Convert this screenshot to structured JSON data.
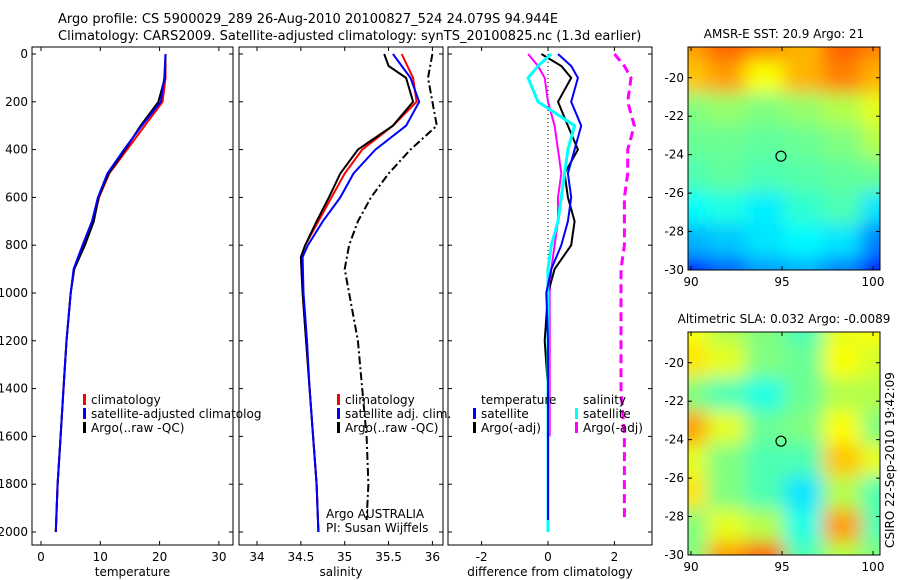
{
  "title_line1": "Argo profile: CS 5900029_289 26-Aug-2010 20100827_524 24.079S 94.944E",
  "title_line2": "Climatology: CARS2009. Satellite-adjusted climatology: synTS_20100825.nc (1.3d earlier)",
  "colors": {
    "climatology": "#ff0000",
    "satellite": "#0000ff",
    "argo": "#000000",
    "sal_satellite": "#00ffff",
    "sal_argo": "#ff00ff"
  },
  "chart_data": [
    {
      "type": "line",
      "title": "",
      "xlabel": "temperature",
      "ylabel": "",
      "xlim": [
        -1,
        32
      ],
      "ylim": [
        2000,
        0
      ],
      "xticks": [
        "0",
        "10",
        "20",
        "30"
      ],
      "yticks": [
        "0",
        "200",
        "400",
        "600",
        "800",
        "1000",
        "1200",
        "1400",
        "1600",
        "1800",
        "2000"
      ],
      "legend": [
        "climatology",
        "satellite-adjusted climatolog",
        "Argo(..raw -QC)"
      ],
      "series": [
        {
          "name": "climatology",
          "depth": [
            0,
            100,
            200,
            300,
            400,
            500,
            600,
            700,
            800,
            900,
            1000,
            1200,
            1400,
            1600,
            1800,
            2000
          ],
          "values": [
            21,
            21,
            20.5,
            17.5,
            14.5,
            11.5,
            9.8,
            8.8,
            7.2,
            5.6,
            5.0,
            4.3,
            3.8,
            3.3,
            2.8,
            2.5
          ]
        },
        {
          "name": "satellite-adjusted climatology",
          "depth": [
            0,
            100,
            200,
            300,
            400,
            500,
            600,
            700,
            800,
            900,
            1000,
            1200,
            1400,
            1600,
            1800,
            2000
          ],
          "values": [
            21,
            20.8,
            20.2,
            17.0,
            14.0,
            11.2,
            9.6,
            8.6,
            7.0,
            5.5,
            5.0,
            4.3,
            3.8,
            3.3,
            2.8,
            2.5
          ]
        },
        {
          "name": "Argo(..raw -QC)",
          "depth": [
            0,
            100,
            200,
            300,
            400,
            500,
            600,
            700,
            800,
            900,
            1000,
            1200,
            1400,
            1600,
            1800,
            2000
          ],
          "values": [
            21,
            20.9,
            19.8,
            16.8,
            14.2,
            11.4,
            9.7,
            8.9,
            7.4,
            5.6,
            5.0,
            4.3,
            3.8,
            3.3,
            2.8,
            2.5
          ]
        }
      ]
    },
    {
      "type": "line",
      "xlabel": "salinity",
      "xlim": [
        33.8,
        36.1
      ],
      "ylim": [
        2000,
        0
      ],
      "xticks": [
        "34",
        "34.5",
        "35",
        "35.5",
        "36"
      ],
      "legend": [
        "climatology",
        "satellite adj. clim.",
        "Argo(..raw -QC)"
      ],
      "annotation": [
        "Argo AUSTRALIA",
        "PI: Susan Wijffels"
      ],
      "series": [
        {
          "name": "climatology",
          "depth": [
            0,
            100,
            200,
            300,
            400,
            500,
            600,
            700,
            800,
            850,
            1000,
            1200,
            1400,
            1600,
            1800,
            2000
          ],
          "values": [
            35.65,
            35.78,
            35.82,
            35.55,
            35.2,
            35.0,
            34.85,
            34.7,
            34.55,
            34.5,
            34.52,
            34.56,
            34.6,
            34.64,
            34.68,
            34.7
          ]
        },
        {
          "name": "satellite adj. clim.",
          "depth": [
            0,
            100,
            200,
            300,
            400,
            500,
            600,
            700,
            800,
            850,
            1000,
            1200,
            1400,
            1600,
            1800,
            2000
          ],
          "values": [
            35.55,
            35.75,
            35.85,
            35.7,
            35.35,
            35.1,
            34.95,
            34.75,
            34.58,
            34.52,
            34.53,
            34.57,
            34.6,
            34.64,
            34.68,
            34.7
          ]
        },
        {
          "name": "Argo(..raw -QC)",
          "depth": [
            0,
            50,
            100,
            200,
            300,
            400,
            500,
            600,
            700,
            800,
            850,
            1000,
            1200,
            1400,
            1600,
            1800,
            2000
          ],
          "values": [
            35.45,
            35.5,
            35.7,
            35.78,
            35.55,
            35.15,
            34.95,
            34.82,
            34.68,
            34.55,
            34.5,
            34.52,
            34.56,
            34.6,
            34.64,
            34.68,
            34.7
          ]
        },
        {
          "name": "Argo raw",
          "depth": [
            0,
            100,
            200,
            300,
            400,
            500,
            600,
            700,
            800,
            900,
            1000,
            1200,
            1400,
            1600,
            1800,
            1950
          ],
          "values": [
            36.0,
            35.95,
            36.0,
            36.05,
            35.75,
            35.5,
            35.3,
            35.15,
            35.05,
            35.0,
            35.05,
            35.15,
            35.2,
            35.25,
            35.27,
            35.25
          ]
        }
      ]
    },
    {
      "type": "line",
      "xlabel": "difference from climatology",
      "xlim": [
        -3,
        3.1
      ],
      "ylim": [
        2000,
        0
      ],
      "xticks": [
        "-2",
        "0",
        "2"
      ],
      "legend": {
        "temperature_label": "temperature",
        "salinity_label": "salinity",
        "items": [
          "satellite",
          "Argo(-adj)",
          "satellite",
          "Argo(-adj)"
        ]
      },
      "series": [
        {
          "name": "temperature satellite",
          "depth": [
            0,
            50,
            100,
            200,
            300,
            400,
            500,
            600,
            700,
            800,
            900,
            1000,
            1200,
            1400,
            1600,
            1800,
            1950
          ],
          "values": [
            0.3,
            0.7,
            0.9,
            0.7,
            1.0,
            0.8,
            0.6,
            0.7,
            0.6,
            0.4,
            0.1,
            -0.05,
            0.0,
            0.0,
            0.0,
            0.0,
            0.0
          ]
        },
        {
          "name": "temperature Argo(-adj)",
          "depth": [
            0,
            50,
            100,
            200,
            300,
            400,
            500,
            600,
            700,
            800,
            900,
            1000,
            1200,
            1400,
            1600,
            1800,
            1950
          ],
          "values": [
            -0.2,
            0.4,
            0.7,
            0.3,
            0.6,
            0.9,
            0.5,
            0.6,
            0.8,
            0.7,
            0.2,
            0.0,
            -0.1,
            0.0,
            0.0,
            0.0,
            0.0
          ]
        },
        {
          "name": "salinity satellite",
          "depth": [
            0,
            50,
            100,
            200,
            300,
            400,
            500,
            600,
            700,
            800,
            900,
            1000,
            1200,
            1400,
            1600,
            1800,
            2000
          ],
          "values": [
            0.1,
            -0.3,
            -0.6,
            -0.3,
            0.8,
            0.6,
            0.5,
            0.4,
            0.3,
            0.1,
            0.0,
            0.0,
            0.0,
            0.0,
            0.0,
            0.0,
            0.0
          ]
        },
        {
          "name": "salinity Argo(-adj) raw",
          "depth": [
            0,
            50,
            100,
            200,
            300,
            400,
            500,
            600,
            700,
            800,
            900,
            1000,
            1200,
            1400,
            1600,
            1800,
            1950
          ],
          "values": [
            2.0,
            2.3,
            2.5,
            2.4,
            2.6,
            2.4,
            2.4,
            2.3,
            2.3,
            2.3,
            2.2,
            2.2,
            2.2,
            2.2,
            2.3,
            2.3,
            2.3
          ]
        },
        {
          "name": "salinity Argo(-adj)",
          "depth": [
            0,
            50,
            100,
            200,
            300,
            400,
            500,
            600,
            700,
            800,
            900,
            1000,
            1200,
            1400,
            1600
          ],
          "values": [
            -0.6,
            -0.3,
            -0.1,
            0.0,
            0.2,
            0.3,
            0.4,
            0.3,
            0.3,
            0.2,
            0.1,
            0.05,
            0.05,
            0.05,
            0.05
          ]
        }
      ]
    },
    {
      "type": "heatmap",
      "title": "AMSR-E SST: 20.9 Argo: 21",
      "xlim": [
        89.8,
        100.5
      ],
      "ylim": [
        -30,
        -18.4
      ],
      "xticks": [
        "90",
        "95",
        "100"
      ],
      "yticks": [
        "-20",
        "-22",
        "-24",
        "-26",
        "-28",
        "-30"
      ],
      "marker": {
        "lon": 94.944,
        "lat": -24.079
      },
      "values": [
        [
          0.72,
          0.78,
          0.75,
          0.7,
          0.78,
          0.75
        ],
        [
          0.68,
          0.72,
          0.62,
          0.7,
          0.75,
          0.7
        ],
        [
          0.5,
          0.52,
          0.5,
          0.52,
          0.55,
          0.6
        ],
        [
          0.48,
          0.48,
          0.47,
          0.48,
          0.5,
          0.55
        ],
        [
          0.45,
          0.47,
          0.45,
          0.46,
          0.47,
          0.48
        ],
        [
          0.38,
          0.4,
          0.36,
          0.42,
          0.45,
          0.35
        ],
        [
          0.3,
          0.32,
          0.35,
          0.37,
          0.35,
          0.25
        ],
        [
          0.15,
          0.22,
          0.28,
          0.3,
          0.25,
          0.15
        ]
      ]
    },
    {
      "type": "heatmap",
      "title": "Altimetric SLA: 0.032 Argo: -0.0089",
      "xlim": [
        89.8,
        100.5
      ],
      "ylim": [
        -30,
        -18.4
      ],
      "xticks": [
        "90",
        "95",
        "100"
      ],
      "yticks": [
        "-20",
        "-22",
        "-24",
        "-26",
        "-28",
        "-30"
      ],
      "marker": {
        "lon": 94.944,
        "lat": -24.079
      },
      "values": [
        [
          0.62,
          0.55,
          0.5,
          0.45,
          0.6,
          0.62
        ],
        [
          0.65,
          0.6,
          0.5,
          0.48,
          0.62,
          0.58
        ],
        [
          0.5,
          0.45,
          0.4,
          0.48,
          0.55,
          0.55
        ],
        [
          0.72,
          0.6,
          0.48,
          0.5,
          0.62,
          0.5
        ],
        [
          0.6,
          0.5,
          0.45,
          0.45,
          0.68,
          0.6
        ],
        [
          0.65,
          0.5,
          0.45,
          0.35,
          0.55,
          0.45
        ],
        [
          0.5,
          0.6,
          0.55,
          0.4,
          0.72,
          0.45
        ],
        [
          0.5,
          0.72,
          0.78,
          0.45,
          0.55,
          0.5
        ]
      ]
    }
  ],
  "footer_stamp": "CSIRO 22-Sep-2010 19:42:09"
}
